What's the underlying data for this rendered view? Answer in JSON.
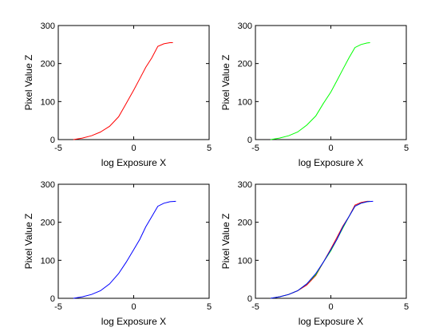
{
  "chart_data": [
    {
      "type": "line",
      "title": "",
      "xlabel": "log Exposure X",
      "ylabel": "Pixel Value Z",
      "xlim": [
        -5,
        5
      ],
      "ylim": [
        0,
        300
      ],
      "xticks": [
        -5,
        0,
        5
      ],
      "yticks": [
        0,
        100,
        200,
        300
      ],
      "grid": false,
      "series": [
        {
          "color": "#ff0000",
          "x": [
            -4.0,
            -3.4,
            -2.8,
            -2.2,
            -1.6,
            -1.0,
            -0.5,
            0.0,
            0.4,
            0.8,
            1.2,
            1.6,
            2.0,
            2.4,
            2.6
          ],
          "y": [
            0,
            4,
            10,
            20,
            35,
            60,
            95,
            130,
            160,
            190,
            215,
            245,
            252,
            255,
            255
          ]
        }
      ]
    },
    {
      "type": "line",
      "title": "",
      "xlabel": "log Exposure X",
      "ylabel": "Pixel Value Z",
      "xlim": [
        -5,
        5
      ],
      "ylim": [
        0,
        300
      ],
      "xticks": [
        -5,
        0,
        5
      ],
      "yticks": [
        0,
        100,
        200,
        300
      ],
      "grid": false,
      "series": [
        {
          "color": "#00ff00",
          "x": [
            -4.0,
            -3.4,
            -2.8,
            -2.2,
            -1.6,
            -1.0,
            -0.5,
            0.0,
            0.4,
            0.8,
            1.2,
            1.6,
            2.0,
            2.4,
            2.6
          ],
          "y": [
            0,
            4,
            10,
            20,
            38,
            62,
            95,
            125,
            155,
            185,
            215,
            242,
            250,
            254,
            255
          ]
        }
      ]
    },
    {
      "type": "line",
      "title": "",
      "xlabel": "log Exposure X",
      "ylabel": "Pixel Value Z",
      "xlim": [
        -5,
        5
      ],
      "ylim": [
        0,
        300
      ],
      "xticks": [
        -5,
        0,
        5
      ],
      "yticks": [
        0,
        100,
        200,
        300
      ],
      "grid": false,
      "series": [
        {
          "color": "#0000ff",
          "x": [
            -4.0,
            -3.4,
            -2.8,
            -2.2,
            -1.6,
            -1.0,
            -0.5,
            0.0,
            0.4,
            0.8,
            1.2,
            1.6,
            2.0,
            2.4,
            2.8
          ],
          "y": [
            0,
            4,
            10,
            20,
            38,
            65,
            95,
            128,
            155,
            188,
            215,
            242,
            250,
            254,
            255
          ]
        }
      ]
    },
    {
      "type": "line",
      "title": "",
      "xlabel": "log Exposure X",
      "ylabel": "Pixel Value Z",
      "xlim": [
        -5,
        5
      ],
      "ylim": [
        0,
        300
      ],
      "xticks": [
        -5,
        0,
        5
      ],
      "yticks": [
        0,
        100,
        200,
        300
      ],
      "grid": false,
      "series": [
        {
          "color": "#ff0000",
          "x": [
            -4.0,
            -3.4,
            -2.8,
            -2.2,
            -1.6,
            -1.0,
            -0.5,
            0.0,
            0.4,
            0.8,
            1.2,
            1.6,
            2.0,
            2.4,
            2.6
          ],
          "y": [
            0,
            4,
            10,
            20,
            35,
            60,
            95,
            130,
            160,
            190,
            215,
            245,
            252,
            255,
            255
          ]
        },
        {
          "color": "#00ff00",
          "x": [
            -4.0,
            -3.4,
            -2.8,
            -2.2,
            -1.6,
            -1.0,
            -0.5,
            0.0,
            0.4,
            0.8,
            1.2,
            1.6,
            2.0,
            2.4,
            2.6
          ],
          "y": [
            0,
            4,
            10,
            20,
            38,
            62,
            95,
            125,
            155,
            185,
            215,
            242,
            250,
            254,
            255
          ]
        },
        {
          "color": "#0000ff",
          "x": [
            -4.0,
            -3.4,
            -2.8,
            -2.2,
            -1.6,
            -1.0,
            -0.5,
            0.0,
            0.4,
            0.8,
            1.2,
            1.6,
            2.0,
            2.4,
            2.8
          ],
          "y": [
            0,
            4,
            10,
            20,
            38,
            65,
            95,
            128,
            155,
            188,
            215,
            242,
            250,
            254,
            255
          ]
        }
      ]
    }
  ]
}
